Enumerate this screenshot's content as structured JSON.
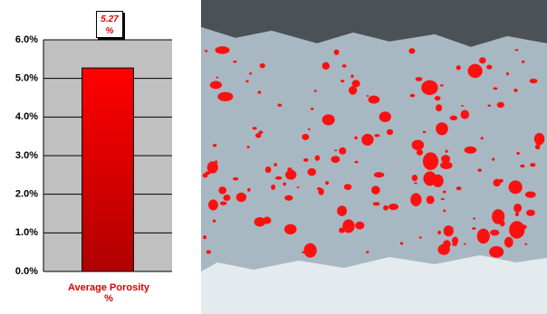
{
  "chart_data": {
    "type": "bar",
    "categories": [
      "Average Porosity %"
    ],
    "values": [
      5.27
    ],
    "value_labels": [
      "5.27 %"
    ],
    "color": "#ff0000",
    "ylim": [
      0,
      6
    ],
    "yticks": [
      {
        "value": 0,
        "label": "0.0%"
      },
      {
        "value": 1,
        "label": "1.0%"
      },
      {
        "value": 2,
        "label": "2.0%"
      },
      {
        "value": 3,
        "label": "3.0%"
      },
      {
        "value": 4,
        "label": "4.0%"
      },
      {
        "value": 5,
        "label": "5.0%"
      },
      {
        "value": 6,
        "label": "6.0%"
      }
    ],
    "grid": true
  }
}
